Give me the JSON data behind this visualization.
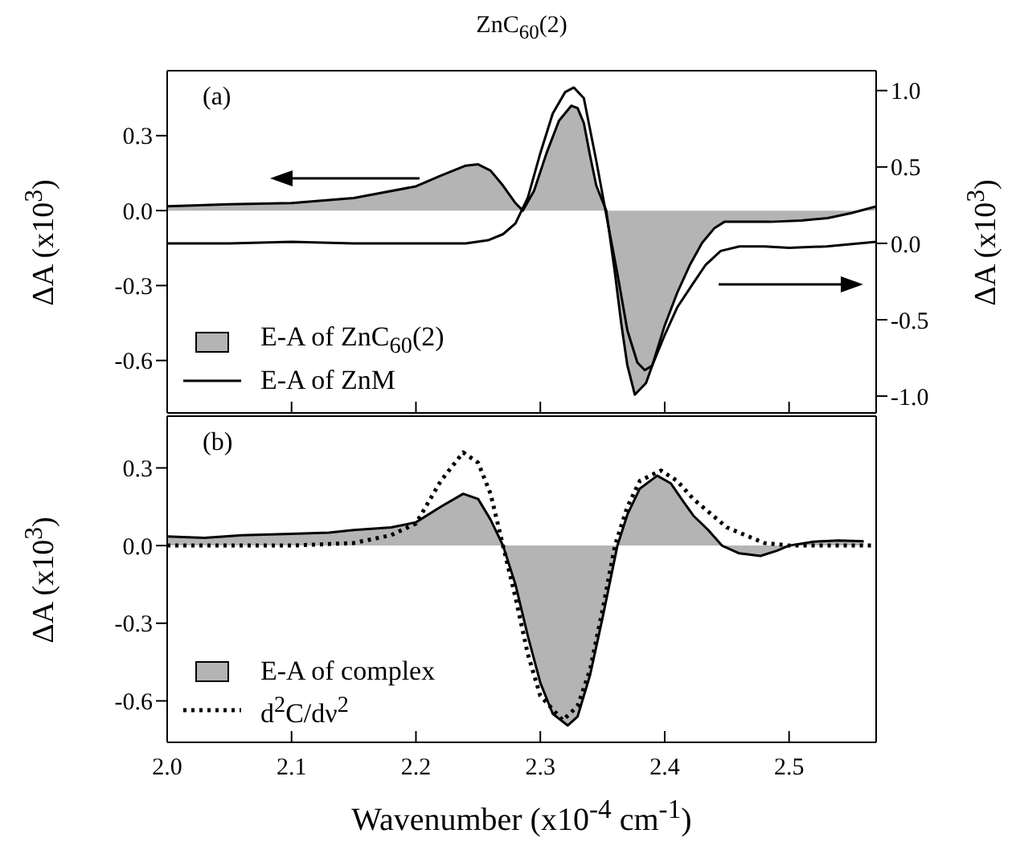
{
  "chart_data": [
    {
      "type": "area",
      "title": "ZnC$_{60}$(2)",
      "ylabel": "ΔA (x10$^{3}$)",
      "y2label": "ΔA (x10$^{3}$)",
      "annotations": [
        "(a)"
      ],
      "xlim": [
        2.0,
        2.57
      ],
      "xticks": [
        2.1,
        2.2,
        2.3,
        2.4,
        2.5
      ],
      "tick_labels": "y",
      "ylim": [
        -0.81,
        0.56
      ],
      "yticks": [
        {
          "value": -0.6,
          "label": "-0.6"
        },
        {
          "value": -0.3,
          "label": "-0.3"
        },
        {
          "value": 0,
          "label": "0.0"
        },
        {
          "value": 0.3,
          "label": "0.3"
        }
      ],
      "y2lim": [
        -1.11,
        1.13
      ],
      "y2ticks": [
        {
          "value": -1,
          "label": "-1.0"
        },
        {
          "value": -0.5,
          "label": "-0.5"
        },
        {
          "value": 0,
          "label": "0.0"
        },
        {
          "value": 0.5,
          "label": "0.5"
        },
        {
          "value": 1,
          "label": "1.0"
        }
      ],
      "grid": false,
      "legend": "bottom left",
      "marker": "none",
      "series": [
        {
          "name": "E-A of ZnC$_{60}$(2)",
          "color": "#b4b4b4",
          "x": [
            2.0,
            2.05,
            2.1,
            2.15,
            2.2,
            2.22,
            2.24,
            2.25,
            2.26,
            2.27,
            2.28,
            2.286,
            2.295,
            2.305,
            2.315,
            2.325,
            2.33,
            2.335,
            2.34,
            2.345,
            2.353,
            2.36,
            2.365,
            2.37,
            2.376,
            2.385,
            2.39,
            2.4,
            2.41,
            2.42,
            2.43,
            2.44,
            2.448,
            2.47,
            2.485,
            2.51,
            2.531,
            2.55,
            2.57
          ],
          "values": [
            0.017,
            0.025,
            0.03,
            0.05,
            0.097,
            0.14,
            0.18,
            0.185,
            0.16,
            0.1,
            0.03,
            0,
            0.08,
            0.23,
            0.36,
            0.42,
            0.41,
            0.35,
            0.22,
            0.1,
            0,
            -0.25,
            -0.45,
            -0.62,
            -0.737,
            -0.69,
            -0.62,
            -0.46,
            -0.33,
            -0.22,
            -0.13,
            -0.07,
            -0.045,
            -0.045,
            -0.045,
            -0.04,
            -0.03,
            -0.01,
            0.017
          ]
        },
        {
          "name": "E-A of ZnM",
          "type": "line",
          "axis": "y2",
          "color": "#000000",
          "line_style": "solid",
          "x": [
            2.0,
            2.05,
            2.1,
            2.15,
            2.2,
            2.24,
            2.258,
            2.27,
            2.28,
            2.29,
            2.3,
            2.31,
            2.32,
            2.327,
            2.335,
            2.345,
            2.355,
            2.362,
            2.37,
            2.378,
            2.384,
            2.39,
            2.4,
            2.41,
            2.423,
            2.433,
            2.445,
            2.46,
            2.48,
            2.5,
            2.53,
            2.57
          ],
          "values": [
            0,
            0,
            0.01,
            0,
            0,
            0,
            0.02,
            0.06,
            0.13,
            0.3,
            0.59,
            0.85,
            0.99,
            1.02,
            0.95,
            0.54,
            0.1,
            -0.2,
            -0.57,
            -0.78,
            -0.83,
            -0.8,
            -0.6,
            -0.42,
            -0.26,
            -0.14,
            -0.05,
            -0.02,
            -0.02,
            -0.03,
            -0.02,
            0.01
          ]
        }
      ]
    },
    {
      "type": "area",
      "xlabel": "Wavenumber (x10$^{-4}$ cm$^{-1}$)",
      "ylabel": "ΔA (x10$^{3}$)",
      "annotations": [
        "(b)"
      ],
      "xlim": [
        2.0,
        2.57
      ],
      "xticks": [
        {
          "value": 2.0,
          "label": "2.0"
        },
        {
          "value": 2.1,
          "label": "2.1"
        },
        {
          "value": 2.2,
          "label": "2.2"
        },
        {
          "value": 2.3,
          "label": "2.3"
        },
        {
          "value": 2.4,
          "label": "2.4"
        },
        {
          "value": 2.5,
          "label": "2.5"
        }
      ],
      "ylim": [
        -0.76,
        0.5
      ],
      "yticks": [
        {
          "value": -0.6,
          "label": "-0.6"
        },
        {
          "value": -0.3,
          "label": "-0.3"
        },
        {
          "value": 0,
          "label": "0.0"
        },
        {
          "value": 0.3,
          "label": "0.3"
        }
      ],
      "grid": false,
      "legend": "bottom left",
      "marker": "none",
      "series": [
        {
          "name": "E-A of complex",
          "color": "#b4b4b4",
          "x": [
            2.0,
            2.03,
            2.06,
            2.1,
            2.13,
            2.15,
            2.18,
            2.2,
            2.22,
            2.238,
            2.25,
            2.26,
            2.27,
            2.28,
            2.29,
            2.3,
            2.31,
            2.322,
            2.33,
            2.34,
            2.35,
            2.362,
            2.37,
            2.38,
            2.394,
            2.405,
            2.415,
            2.423,
            2.435,
            2.446,
            2.46,
            2.477,
            2.49,
            2.5,
            2.52,
            2.54,
            2.56
          ],
          "values": [
            0.035,
            0.03,
            0.04,
            0.045,
            0.05,
            0.06,
            0.07,
            0.09,
            0.15,
            0.2,
            0.18,
            0.1,
            0,
            -0.15,
            -0.35,
            -0.53,
            -0.65,
            -0.695,
            -0.66,
            -0.5,
            -0.28,
            0,
            0.12,
            0.22,
            0.27,
            0.24,
            0.17,
            0.116,
            0.06,
            0,
            -0.03,
            -0.04,
            -0.02,
            0,
            0.015,
            0.02,
            0.017
          ]
        },
        {
          "name": "d$^{2}$C/dν$^{2}$",
          "type": "line",
          "color": "#000000",
          "line_style": "dotted",
          "x": [
            2.0,
            2.1,
            2.15,
            2.18,
            2.2,
            2.22,
            2.238,
            2.25,
            2.26,
            2.27,
            2.28,
            2.29,
            2.3,
            2.318,
            2.33,
            2.34,
            2.35,
            2.36,
            2.37,
            2.38,
            2.397,
            2.41,
            2.423,
            2.45,
            2.48,
            2.5,
            2.57
          ],
          "values": [
            0,
            0,
            0.01,
            0.04,
            0.085,
            0.25,
            0.36,
            0.32,
            0.2,
            0,
            -0.2,
            -0.42,
            -0.58,
            -0.675,
            -0.62,
            -0.48,
            -0.25,
            0,
            0.15,
            0.25,
            0.29,
            0.25,
            0.18,
            0.07,
            0.01,
            0,
            0
          ]
        }
      ]
    }
  ]
}
